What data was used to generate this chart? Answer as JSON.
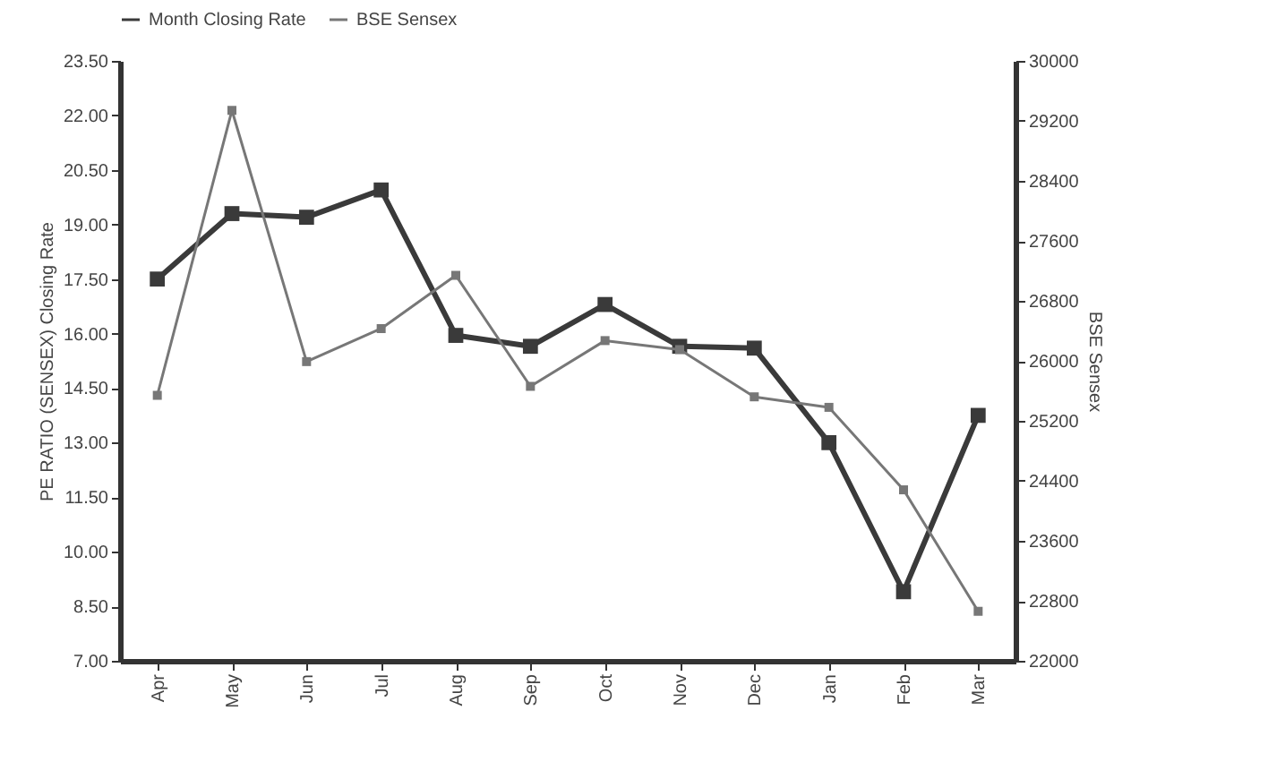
{
  "chart_data": {
    "type": "line",
    "xlabel": null,
    "ylabel": "PE RATIO (SENSEX) Closing Rate",
    "y2label": "BSE Sensex",
    "categories": [
      "Apr",
      "May",
      "Jun",
      "Jul",
      "Aug",
      "Sep",
      "Oct",
      "Nov",
      "Dec",
      "Jan",
      "Feb",
      "Mar"
    ],
    "series": [
      {
        "name": "Month Closing Rate",
        "color": "#3a3a3a",
        "values": [
          17.5,
          19.3,
          19.2,
          19.95,
          15.95,
          15.65,
          16.8,
          15.65,
          15.6,
          13.0,
          8.9,
          13.75
        ]
      },
      {
        "name": "BSE Sensex",
        "color": "#777777",
        "axis": "y2",
        "values": [
          25540,
          29340,
          25990,
          26430,
          27140,
          25660,
          26270,
          26150,
          25520,
          25380,
          24280,
          22660
        ]
      }
    ],
    "ylim": [
      7,
      23.5
    ],
    "yticks": [
      {
        "value": 7,
        "label": "7.00"
      },
      {
        "value": 8.5,
        "label": "8.50"
      },
      {
        "value": 10,
        "label": "10.00"
      },
      {
        "value": 11.5,
        "label": "11.50"
      },
      {
        "value": 13,
        "label": "13.00"
      },
      {
        "value": 14.5,
        "label": "14.50"
      },
      {
        "value": 16,
        "label": "16.00"
      },
      {
        "value": 17.5,
        "label": "17.50"
      },
      {
        "value": 19,
        "label": "19.00"
      },
      {
        "value": 20.5,
        "label": "20.50"
      },
      {
        "value": 22,
        "label": "22.00"
      },
      {
        "value": 23.5,
        "label": "23.50"
      }
    ],
    "y2lim": [
      22000,
      30000
    ],
    "y2ticks": [
      22000,
      22800,
      23600,
      24400,
      25200,
      26000,
      26800,
      27600,
      28400,
      29200,
      30000
    ],
    "marker": "square",
    "legend": "top",
    "grid": false
  }
}
